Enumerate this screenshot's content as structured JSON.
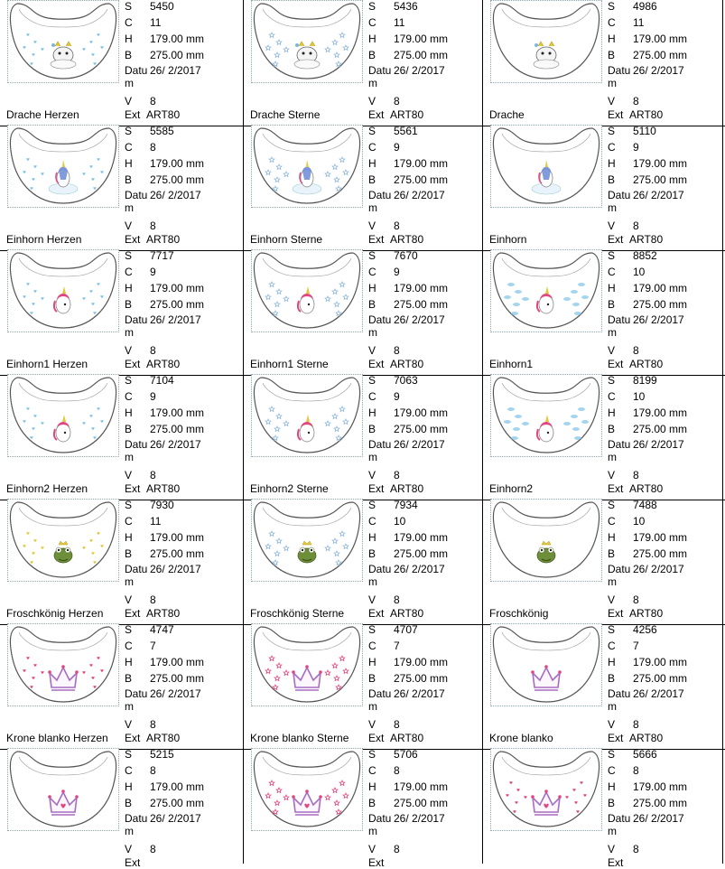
{
  "labels": {
    "stitches": "S",
    "colors": "C",
    "height": "H",
    "width": "B",
    "date_line1": "Datu",
    "date_line2": "m",
    "version": "V",
    "ext": "Ext"
  },
  "colors": {
    "grid": "#000000",
    "outline": "#555555",
    "thumb_border": "#8aa6b0",
    "heart_blue": "#7fc3e6",
    "star_blue": "#8fb8d8",
    "pink": "#e0467f",
    "crown_purple": "#a86bc4",
    "frog_green": "#6e8f3a",
    "gold": "#e2c83a"
  },
  "designs": [
    {
      "name": "Drache Herzen",
      "stitches": "5450",
      "colors": "11",
      "height": "179.00 mm",
      "width": "275.00 mm",
      "date": "26/ 2/2017",
      "version": "8",
      "ext": "ART80",
      "motif": "dragon",
      "accent": "hearts"
    },
    {
      "name": "Drache Sterne",
      "stitches": "5436",
      "colors": "11",
      "height": "179.00 mm",
      "width": "275.00 mm",
      "date": "26/ 2/2017",
      "version": "8",
      "ext": "ART80",
      "motif": "dragon",
      "accent": "stars"
    },
    {
      "name": "Drache",
      "stitches": "4986",
      "colors": "11",
      "height": "179.00 mm",
      "width": "275.00 mm",
      "date": "26/ 2/2017",
      "version": "8",
      "ext": "ART80",
      "motif": "dragon",
      "accent": "none"
    },
    {
      "name": "Einhorn Herzen",
      "stitches": "5585",
      "colors": "8",
      "height": "179.00 mm",
      "width": "275.00 mm",
      "date": "26/ 2/2017",
      "version": "8",
      "ext": "ART80",
      "motif": "unicorn",
      "accent": "hearts"
    },
    {
      "name": "Einhorn Sterne",
      "stitches": "5561",
      "colors": "9",
      "height": "179.00 mm",
      "width": "275.00 mm",
      "date": "26/ 2/2017",
      "version": "8",
      "ext": "ART80",
      "motif": "unicorn",
      "accent": "stars"
    },
    {
      "name": "Einhorn",
      "stitches": "5110",
      "colors": "9",
      "height": "179.00 mm",
      "width": "275.00 mm",
      "date": "26/ 2/2017",
      "version": "8",
      "ext": "ART80",
      "motif": "unicorn",
      "accent": "none"
    },
    {
      "name": "Einhorn1 Herzen",
      "stitches": "7717",
      "colors": "9",
      "height": "179.00 mm",
      "width": "275.00 mm",
      "date": "26/ 2/2017",
      "version": "8",
      "ext": "ART80",
      "motif": "unicorn-head",
      "accent": "hearts"
    },
    {
      "name": "Einhorn1 Sterne",
      "stitches": "7670",
      "colors": "9",
      "height": "179.00 mm",
      "width": "275.00 mm",
      "date": "26/ 2/2017",
      "version": "8",
      "ext": "ART80",
      "motif": "unicorn-head",
      "accent": "stars"
    },
    {
      "name": "Einhorn1",
      "stitches": "8852",
      "colors": "10",
      "height": "179.00 mm",
      "width": "275.00 mm",
      "date": "26/ 2/2017",
      "version": "8",
      "ext": "ART80",
      "motif": "unicorn-head",
      "accent": "clouds"
    },
    {
      "name": "Einhorn2 Herzen",
      "stitches": "7104",
      "colors": "9",
      "height": "179.00 mm",
      "width": "275.00 mm",
      "date": "26/ 2/2017",
      "version": "8",
      "ext": "ART80",
      "motif": "unicorn-small",
      "accent": "hearts"
    },
    {
      "name": "Einhorn2 Sterne",
      "stitches": "7063",
      "colors": "9",
      "height": "179.00 mm",
      "width": "275.00 mm",
      "date": "26/ 2/2017",
      "version": "8",
      "ext": "ART80",
      "motif": "unicorn-small",
      "accent": "stars"
    },
    {
      "name": "Einhorn2",
      "stitches": "8199",
      "colors": "10",
      "height": "179.00 mm",
      "width": "275.00 mm",
      "date": "26/ 2/2017",
      "version": "8",
      "ext": "ART80",
      "motif": "unicorn-small",
      "accent": "clouds"
    },
    {
      "name": "Froschkönig Herzen",
      "stitches": "7930",
      "colors": "11",
      "height": "179.00 mm",
      "width": "275.00 mm",
      "date": "26/ 2/2017",
      "version": "8",
      "ext": "ART80",
      "motif": "frog",
      "accent": "hearts-gold"
    },
    {
      "name": "Froschkönig Sterne",
      "stitches": "7934",
      "colors": "10",
      "height": "179.00 mm",
      "width": "275.00 mm",
      "date": "26/ 2/2017",
      "version": "8",
      "ext": "ART80",
      "motif": "frog",
      "accent": "stars"
    },
    {
      "name": "Froschkönig",
      "stitches": "7488",
      "colors": "10",
      "height": "179.00 mm",
      "width": "275.00 mm",
      "date": "26/ 2/2017",
      "version": "8",
      "ext": "ART80",
      "motif": "frog",
      "accent": "none"
    },
    {
      "name": "Krone blanko Herzen",
      "stitches": "4747",
      "colors": "7",
      "height": "179.00 mm",
      "width": "275.00 mm",
      "date": "26/ 2/2017",
      "version": "8",
      "ext": "ART80",
      "motif": "crown",
      "accent": "hearts-pink"
    },
    {
      "name": "Krone blanko Sterne",
      "stitches": "4707",
      "colors": "7",
      "height": "179.00 mm",
      "width": "275.00 mm",
      "date": "26/ 2/2017",
      "version": "8",
      "ext": "ART80",
      "motif": "crown",
      "accent": "stars-pink"
    },
    {
      "name": "Krone blanko",
      "stitches": "4256",
      "colors": "7",
      "height": "179.00 mm",
      "width": "275.00 mm",
      "date": "26/ 2/2017",
      "version": "8",
      "ext": "ART80",
      "motif": "crown",
      "accent": "none"
    },
    {
      "name": "",
      "stitches": "5215",
      "colors": "8",
      "height": "179.00 mm",
      "width": "275.00 mm",
      "date": "26/ 2/2017",
      "version": "8",
      "ext": "",
      "motif": "crown-heart",
      "accent": "none"
    },
    {
      "name": "",
      "stitches": "5706",
      "colors": "8",
      "height": "179.00 mm",
      "width": "275.00 mm",
      "date": "26/ 2/2017",
      "version": "8",
      "ext": "",
      "motif": "crown-heart",
      "accent": "stars-pink"
    },
    {
      "name": "",
      "stitches": "5666",
      "colors": "8",
      "height": "179.00 mm",
      "width": "275.00 mm",
      "date": "26/ 2/2017",
      "version": "8",
      "ext": "",
      "motif": "crown-heart",
      "accent": "hearts-pink"
    }
  ]
}
